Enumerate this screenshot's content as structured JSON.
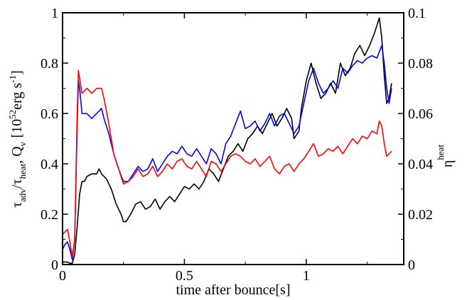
{
  "chart_data": {
    "type": "line",
    "xlabel": "time after bounce[s]",
    "ylabel_left": {
      "tau": "τ",
      "adv": "adv",
      "slash": "/",
      "heat": "heat",
      "sep": ",",
      "Q": "Q",
      "nu": "ν",
      "bracket_open": "[10",
      "exp": "52",
      "unit_mid": "erg s",
      "unit_exp": "-1",
      "bracket_close": "]"
    },
    "ylabel_right": {
      "eta": "η",
      "sup": "heat"
    },
    "xlim": [
      0,
      1.4
    ],
    "ylim_left": [
      0,
      1
    ],
    "ylim_right": [
      0,
      0.1
    ],
    "x_ticks": [
      0,
      0.5,
      1
    ],
    "x_tick_labels": [
      "0",
      "0.5",
      "1"
    ],
    "y_left_ticks": [
      0,
      0.2,
      0.4,
      0.6,
      0.8,
      1
    ],
    "y_left_tick_labels": [
      "0",
      "0.2",
      "0.4",
      "0.6",
      "0.8",
      "1"
    ],
    "y_right_ticks": [
      0,
      0.02,
      0.04,
      0.06,
      0.08,
      0.1
    ],
    "y_right_tick_labels": [
      "0",
      "0.02",
      "0.04",
      "0.06",
      "0.08",
      "0.1"
    ],
    "grid": false,
    "legend": "none",
    "series": [
      {
        "color": "#000000",
        "axis": "left",
        "points": [
          [
            0,
            0.01
          ],
          [
            0.01,
            0.01
          ],
          [
            0.02,
            0.01
          ],
          [
            0.03,
            0.005
          ],
          [
            0.04,
            0.005
          ],
          [
            0.05,
            0.04
          ],
          [
            0.06,
            0.15
          ],
          [
            0.07,
            0.28
          ],
          [
            0.08,
            0.33
          ],
          [
            0.09,
            0.33
          ],
          [
            0.1,
            0.35
          ],
          [
            0.12,
            0.36
          ],
          [
            0.14,
            0.36
          ],
          [
            0.15,
            0.38
          ],
          [
            0.16,
            0.36
          ],
          [
            0.18,
            0.34
          ],
          [
            0.2,
            0.3
          ],
          [
            0.22,
            0.24
          ],
          [
            0.24,
            0.2
          ],
          [
            0.25,
            0.17
          ],
          [
            0.26,
            0.17
          ],
          [
            0.28,
            0.2
          ],
          [
            0.3,
            0.24
          ],
          [
            0.32,
            0.25
          ],
          [
            0.34,
            0.22
          ],
          [
            0.36,
            0.23
          ],
          [
            0.38,
            0.26
          ],
          [
            0.4,
            0.22
          ],
          [
            0.42,
            0.25
          ],
          [
            0.44,
            0.27
          ],
          [
            0.46,
            0.25
          ],
          [
            0.48,
            0.28
          ],
          [
            0.5,
            0.31
          ],
          [
            0.52,
            0.3
          ],
          [
            0.54,
            0.32
          ],
          [
            0.56,
            0.3
          ],
          [
            0.58,
            0.33
          ],
          [
            0.6,
            0.38
          ],
          [
            0.62,
            0.36
          ],
          [
            0.64,
            0.33
          ],
          [
            0.66,
            0.38
          ],
          [
            0.68,
            0.43
          ],
          [
            0.7,
            0.45
          ],
          [
            0.72,
            0.48
          ],
          [
            0.74,
            0.45
          ],
          [
            0.76,
            0.5
          ],
          [
            0.78,
            0.52
          ],
          [
            0.8,
            0.55
          ],
          [
            0.82,
            0.52
          ],
          [
            0.84,
            0.56
          ],
          [
            0.86,
            0.6
          ],
          [
            0.88,
            0.55
          ],
          [
            0.9,
            0.58
          ],
          [
            0.92,
            0.62
          ],
          [
            0.94,
            0.58
          ],
          [
            0.95,
            0.5
          ],
          [
            0.97,
            0.53
          ],
          [
            0.98,
            0.62
          ],
          [
            1.0,
            0.73
          ],
          [
            1.02,
            0.8
          ],
          [
            1.04,
            0.72
          ],
          [
            1.06,
            0.66
          ],
          [
            1.08,
            0.68
          ],
          [
            1.1,
            0.72
          ],
          [
            1.12,
            0.68
          ],
          [
            1.14,
            0.8
          ],
          [
            1.16,
            0.75
          ],
          [
            1.18,
            0.78
          ],
          [
            1.2,
            0.84
          ],
          [
            1.22,
            0.87
          ],
          [
            1.24,
            0.83
          ],
          [
            1.26,
            0.87
          ],
          [
            1.28,
            0.92
          ],
          [
            1.3,
            0.98
          ],
          [
            1.31,
            0.9
          ],
          [
            1.32,
            0.75
          ],
          [
            1.33,
            0.64
          ],
          [
            1.34,
            0.66
          ],
          [
            1.35,
            0.72
          ]
        ]
      },
      {
        "color": "#0000ff",
        "axis": "left",
        "points": [
          [
            0,
            0.06
          ],
          [
            0.01,
            0.08
          ],
          [
            0.02,
            0.09
          ],
          [
            0.03,
            0.06
          ],
          [
            0.04,
            0.02
          ],
          [
            0.05,
            0.1
          ],
          [
            0.06,
            0.55
          ],
          [
            0.065,
            0.73
          ],
          [
            0.07,
            0.7
          ],
          [
            0.08,
            0.6
          ],
          [
            0.1,
            0.6
          ],
          [
            0.12,
            0.58
          ],
          [
            0.14,
            0.6
          ],
          [
            0.16,
            0.62
          ],
          [
            0.17,
            0.58
          ],
          [
            0.19,
            0.52
          ],
          [
            0.21,
            0.44
          ],
          [
            0.23,
            0.38
          ],
          [
            0.25,
            0.33
          ],
          [
            0.27,
            0.33
          ],
          [
            0.29,
            0.36
          ],
          [
            0.31,
            0.39
          ],
          [
            0.33,
            0.37
          ],
          [
            0.35,
            0.38
          ],
          [
            0.37,
            0.42
          ],
          [
            0.39,
            0.37
          ],
          [
            0.41,
            0.4
          ],
          [
            0.43,
            0.43
          ],
          [
            0.45,
            0.45
          ],
          [
            0.47,
            0.44
          ],
          [
            0.49,
            0.47
          ],
          [
            0.51,
            0.44
          ],
          [
            0.53,
            0.43
          ],
          [
            0.55,
            0.46
          ],
          [
            0.57,
            0.43
          ],
          [
            0.59,
            0.4
          ],
          [
            0.61,
            0.46
          ],
          [
            0.63,
            0.44
          ],
          [
            0.65,
            0.4
          ],
          [
            0.67,
            0.48
          ],
          [
            0.69,
            0.51
          ],
          [
            0.71,
            0.56
          ],
          [
            0.73,
            0.61
          ],
          [
            0.75,
            0.54
          ],
          [
            0.77,
            0.55
          ],
          [
            0.79,
            0.57
          ],
          [
            0.81,
            0.53
          ],
          [
            0.83,
            0.56
          ],
          [
            0.85,
            0.6
          ],
          [
            0.87,
            0.55
          ],
          [
            0.89,
            0.59
          ],
          [
            0.91,
            0.6
          ],
          [
            0.93,
            0.56
          ],
          [
            0.95,
            0.52
          ],
          [
            0.97,
            0.55
          ],
          [
            0.99,
            0.64
          ],
          [
            1.01,
            0.73
          ],
          [
            1.03,
            0.78
          ],
          [
            1.05,
            0.72
          ],
          [
            1.07,
            0.68
          ],
          [
            1.09,
            0.7
          ],
          [
            1.11,
            0.73
          ],
          [
            1.13,
            0.7
          ],
          [
            1.15,
            0.78
          ],
          [
            1.17,
            0.76
          ],
          [
            1.19,
            0.79
          ],
          [
            1.21,
            0.81
          ],
          [
            1.23,
            0.8
          ],
          [
            1.25,
            0.82
          ],
          [
            1.27,
            0.83
          ],
          [
            1.29,
            0.82
          ],
          [
            1.31,
            0.87
          ],
          [
            1.32,
            0.8
          ],
          [
            1.33,
            0.7
          ],
          [
            1.34,
            0.64
          ],
          [
            1.35,
            0.7
          ]
        ]
      },
      {
        "color": "#ff0000",
        "axis": "left",
        "points": [
          [
            0,
            0.12
          ],
          [
            0.01,
            0.13
          ],
          [
            0.02,
            0.14
          ],
          [
            0.03,
            0.09
          ],
          [
            0.04,
            0.03
          ],
          [
            0.05,
            0.1
          ],
          [
            0.06,
            0.6
          ],
          [
            0.065,
            0.77
          ],
          [
            0.07,
            0.74
          ],
          [
            0.08,
            0.68
          ],
          [
            0.1,
            0.7
          ],
          [
            0.12,
            0.68
          ],
          [
            0.14,
            0.7
          ],
          [
            0.16,
            0.7
          ],
          [
            0.17,
            0.66
          ],
          [
            0.19,
            0.56
          ],
          [
            0.21,
            0.44
          ],
          [
            0.23,
            0.38
          ],
          [
            0.25,
            0.32
          ],
          [
            0.27,
            0.33
          ],
          [
            0.29,
            0.35
          ],
          [
            0.31,
            0.38
          ],
          [
            0.33,
            0.35
          ],
          [
            0.35,
            0.36
          ],
          [
            0.37,
            0.39
          ],
          [
            0.39,
            0.35
          ],
          [
            0.41,
            0.37
          ],
          [
            0.43,
            0.4
          ],
          [
            0.45,
            0.38
          ],
          [
            0.47,
            0.41
          ],
          [
            0.49,
            0.42
          ],
          [
            0.51,
            0.39
          ],
          [
            0.53,
            0.38
          ],
          [
            0.55,
            0.41
          ],
          [
            0.57,
            0.38
          ],
          [
            0.59,
            0.35
          ],
          [
            0.61,
            0.41
          ],
          [
            0.63,
            0.4
          ],
          [
            0.65,
            0.37
          ],
          [
            0.67,
            0.4
          ],
          [
            0.69,
            0.43
          ],
          [
            0.71,
            0.44
          ],
          [
            0.73,
            0.43
          ],
          [
            0.75,
            0.41
          ],
          [
            0.77,
            0.4
          ],
          [
            0.79,
            0.42
          ],
          [
            0.81,
            0.39
          ],
          [
            0.83,
            0.41
          ],
          [
            0.85,
            0.43
          ],
          [
            0.87,
            0.38
          ],
          [
            0.89,
            0.36
          ],
          [
            0.91,
            0.39
          ],
          [
            0.93,
            0.4
          ],
          [
            0.95,
            0.37
          ],
          [
            0.97,
            0.4
          ],
          [
            0.99,
            0.42
          ],
          [
            1.01,
            0.45
          ],
          [
            1.03,
            0.48
          ],
          [
            1.05,
            0.43
          ],
          [
            1.07,
            0.44
          ],
          [
            1.09,
            0.46
          ],
          [
            1.11,
            0.45
          ],
          [
            1.13,
            0.47
          ],
          [
            1.15,
            0.44
          ],
          [
            1.17,
            0.47
          ],
          [
            1.19,
            0.5
          ],
          [
            1.21,
            0.48
          ],
          [
            1.23,
            0.51
          ],
          [
            1.25,
            0.5
          ],
          [
            1.27,
            0.53
          ],
          [
            1.29,
            0.52
          ],
          [
            1.3,
            0.57
          ],
          [
            1.31,
            0.55
          ],
          [
            1.32,
            0.48
          ],
          [
            1.33,
            0.43
          ],
          [
            1.34,
            0.44
          ],
          [
            1.35,
            0.45
          ]
        ]
      }
    ]
  }
}
